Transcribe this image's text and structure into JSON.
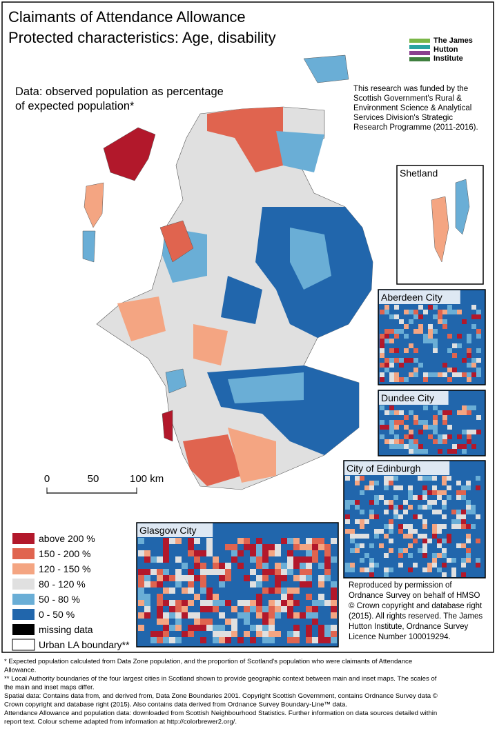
{
  "title": [
    "Claimants of Attendance Allowance",
    "Protected characteristics: Age, disability"
  ],
  "subtitle": [
    "Data: observed population as percentage",
    "of expected population*"
  ],
  "logo": [
    "The James",
    "Hutton",
    "Institute"
  ],
  "funding": [
    "This research was funded by the",
    "Scottish Government's Rural &",
    "Environment Science & Analytical",
    "Services Division's Strategic",
    "Research Programme (2011-2016)."
  ],
  "insets": [
    "Shetland",
    "Aberdeen City",
    "Dundee City",
    "City of Edinburgh",
    "Glasgow City"
  ],
  "scale_bar": [
    "0",
    "50",
    "100 km"
  ],
  "legend": [
    {
      "label": "above 200 %",
      "color": "#b2182b"
    },
    {
      "label": "150 - 200 %",
      "color": "#e0644f"
    },
    {
      "label": "120 - 150 %",
      "color": "#f4a582"
    },
    {
      "label": "80 - 120 %",
      "color": "#e0e0e0"
    },
    {
      "label": "50 - 80 %",
      "color": "#6aaed6"
    },
    {
      "label": "0 - 50 %",
      "color": "#2166ac"
    },
    {
      "label": "missing data",
      "color": "#000000"
    },
    {
      "label": "Urban LA boundary**",
      "color": "#ffffff"
    }
  ],
  "copyright": [
    "Reproduced by permission of",
    "Ordnance Survey on behalf of HMSO",
    "© Crown copyright and database right",
    "(2015). All rights reserved. The James",
    "Hutton Institute, Ordnance Survey",
    "Licence Number 100019294."
  ],
  "footnotes": [
    "* Expected population calculated from Data Zone population, and the proportion of Scotland's population who were claimants of Attendance",
    "Allowance.",
    "** Local Authority boundaries of the four largest cities in Scotland shown to provide geographic context between main and inset maps. The scales of",
    "the main and inset maps differ.",
    "Spatial data: Contains data from, and derived from, Data Zone Boundaries 2001. Copyright Scottish Government, contains Ordnance Survey data ©",
    "Crown copyright and database right (2015). Also contains data derived from Ordnance Survey Boundary-Line™ data.",
    "Attendance Allowance and population data: downloaded from Scottish Neighbourhood Statistics. Further information on data sources detailed within",
    "report text. Colour scheme adapted from information at http://colorbrewer2.org/."
  ]
}
